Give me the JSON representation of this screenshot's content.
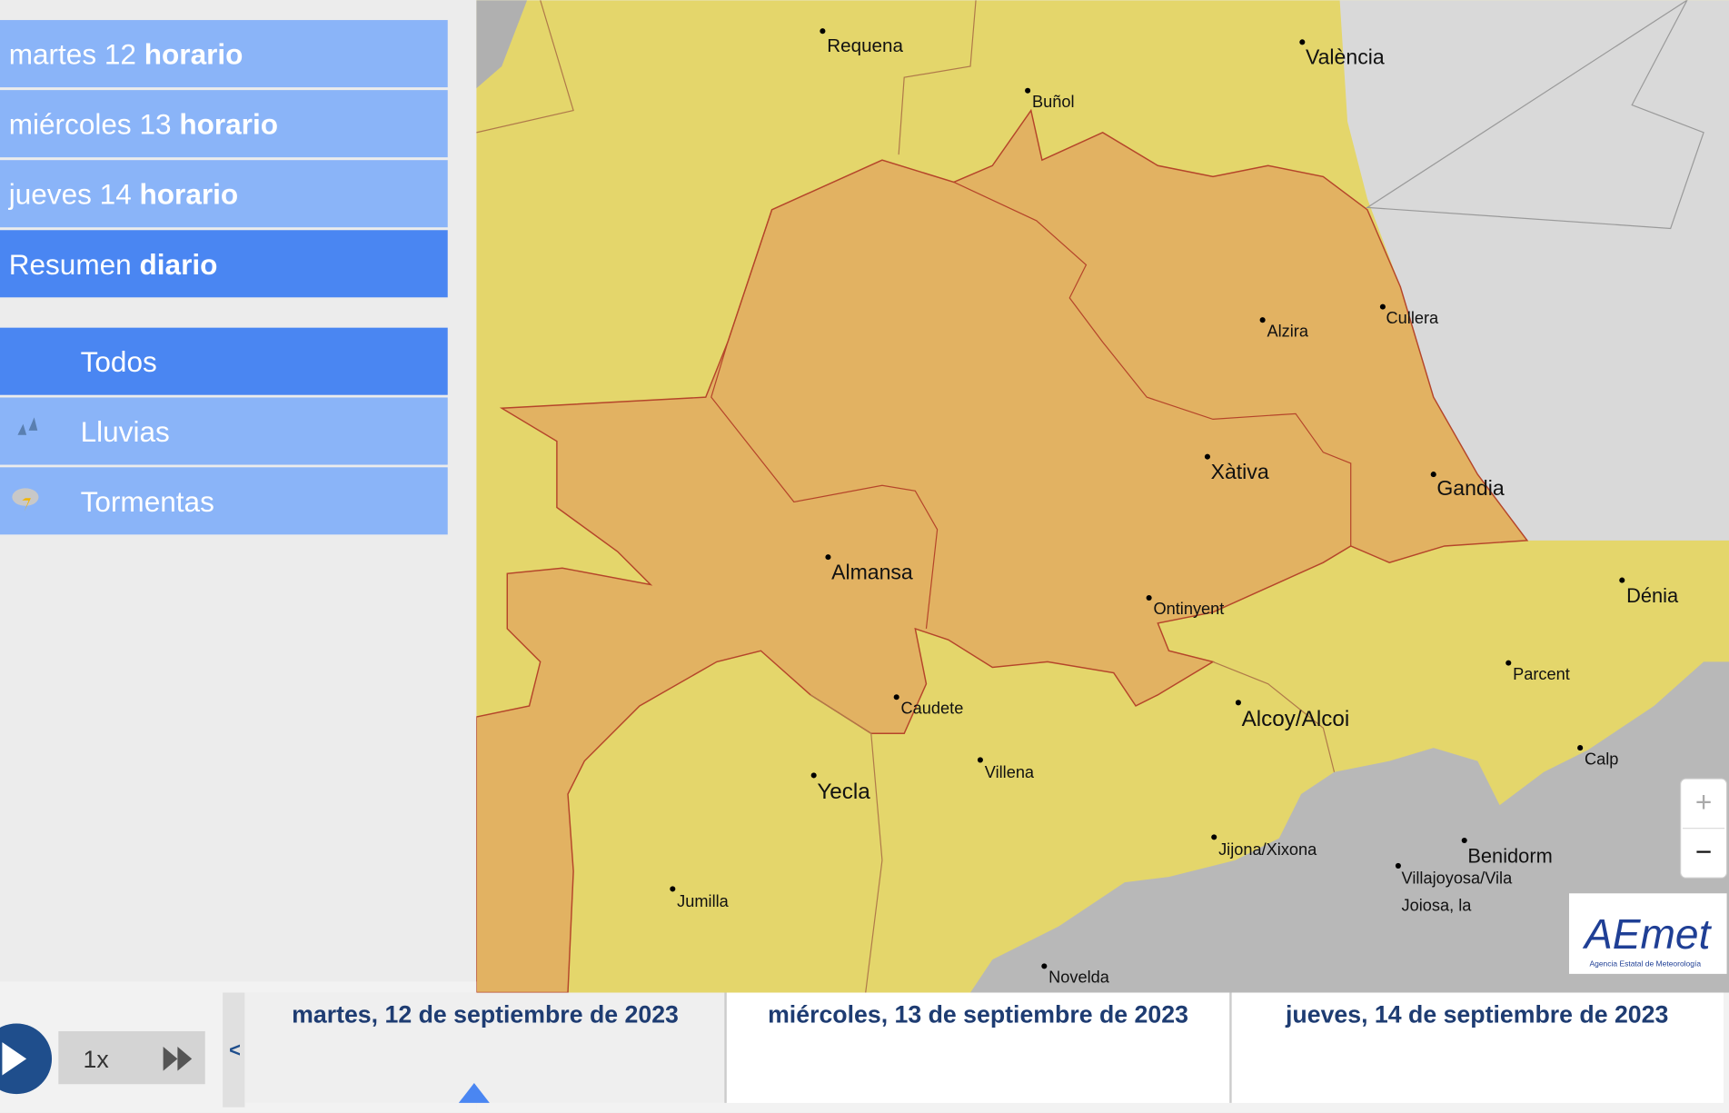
{
  "menu": [
    {
      "day": "martes 12",
      "mode": "horario"
    },
    {
      "day": "miércoles 13",
      "mode": "horario"
    },
    {
      "day": "jueves 14",
      "mode": "horario"
    },
    {
      "day": "Resumen",
      "mode": "diario"
    }
  ],
  "filters": [
    "Todos",
    "Lluvias",
    "Tormentas"
  ],
  "map": {
    "cities": [
      "Requena",
      "València",
      "Buñol",
      "Alzira",
      "Cullera",
      "Xàtiva",
      "Gandia",
      "Almansa",
      "Dénia",
      "Ontinyent",
      "Parcent",
      "Caudete",
      "Alcoy/Alcoi",
      "Villena",
      "Calp",
      "Yecla",
      "Jijona/Xixona",
      "Benidorm",
      "Villajoyosa/Vila",
      "Joiosa, la",
      "Jumilla",
      "Novelda"
    ],
    "zoom_in": "+",
    "zoom_out": "−",
    "logo": {
      "name": "AEmet",
      "subtitle": "Agencia Estatal de Meteorología"
    }
  },
  "timeline": {
    "speed": "1x",
    "prev": "<",
    "dates": [
      "martes, 12 de septiembre de 2023",
      "miércoles, 13 de septiembre de 2023",
      "jueves, 14 de septiembre de 2023"
    ]
  }
}
